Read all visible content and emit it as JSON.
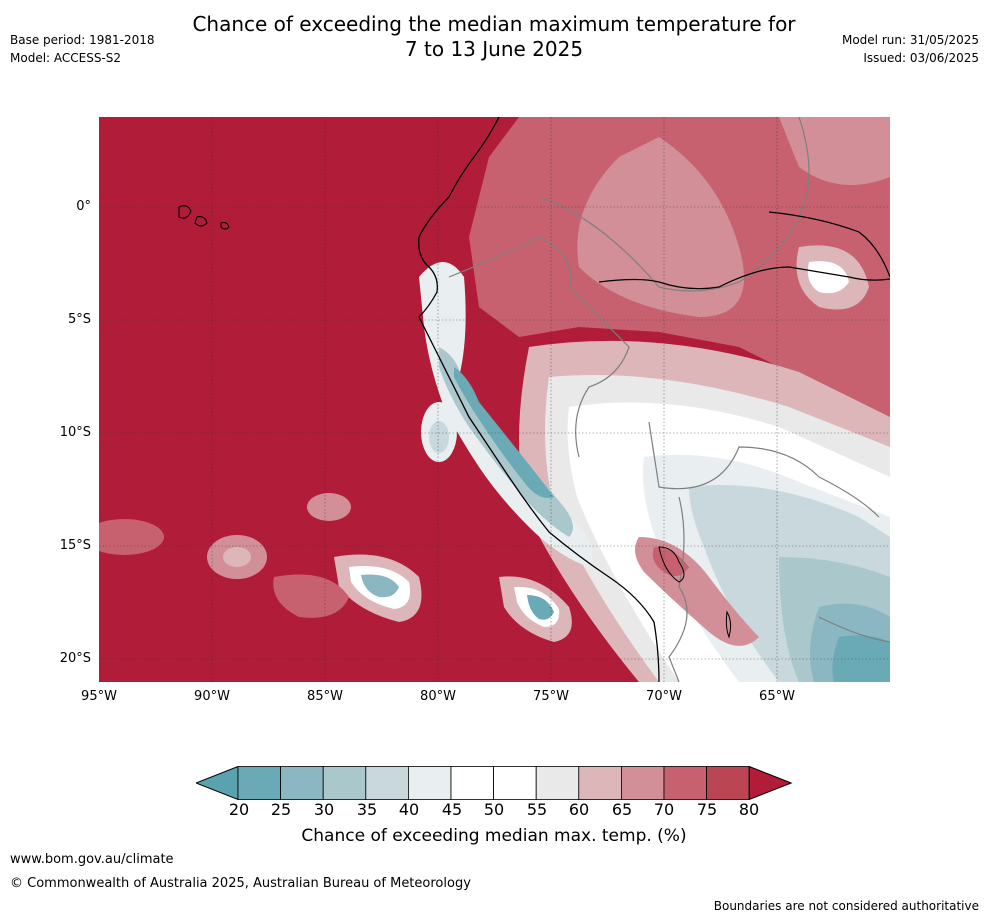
{
  "title_line1": "Chance of exceeding the median maximum temperature for",
  "title_line2": "7 to 13 June 2025",
  "base_period": "Base period: 1981-2018",
  "model": "Model: ACCESS-S2",
  "model_run": "Model run: 31/05/2025",
  "issued": "Issued: 03/06/2025",
  "y_labels": [
    "0°",
    "5°S",
    "10°S",
    "15°S",
    "20°S"
  ],
  "x_labels": [
    "95°W",
    "90°W",
    "85°W",
    "80°W",
    "75°W",
    "70°W",
    "65°W"
  ],
  "colorbar": {
    "ticks": [
      "20",
      "25",
      "30",
      "35",
      "40",
      "45",
      "50",
      "55",
      "60",
      "65",
      "70",
      "75",
      "80"
    ],
    "colors": [
      "#6aaab6",
      "#8ab7c1",
      "#aac7cc",
      "#c8d8dc",
      "#e9eff1",
      "#ffffff",
      "#ffffff",
      "#e9e9ea",
      "#ddb6ba",
      "#d38f98",
      "#c76170",
      "#bc4553"
    ],
    "under_color": "#5aa2ae",
    "over_color": "#b11c38",
    "label": "Chance of exceeding median max. temp. (%)"
  },
  "url": "www.bom.gov.au/climate",
  "copyright": "© Commonwealth of Australia 2025, Australian Bureau of Meteorology",
  "disclaimer": "Boundaries are not considered authoritative"
}
